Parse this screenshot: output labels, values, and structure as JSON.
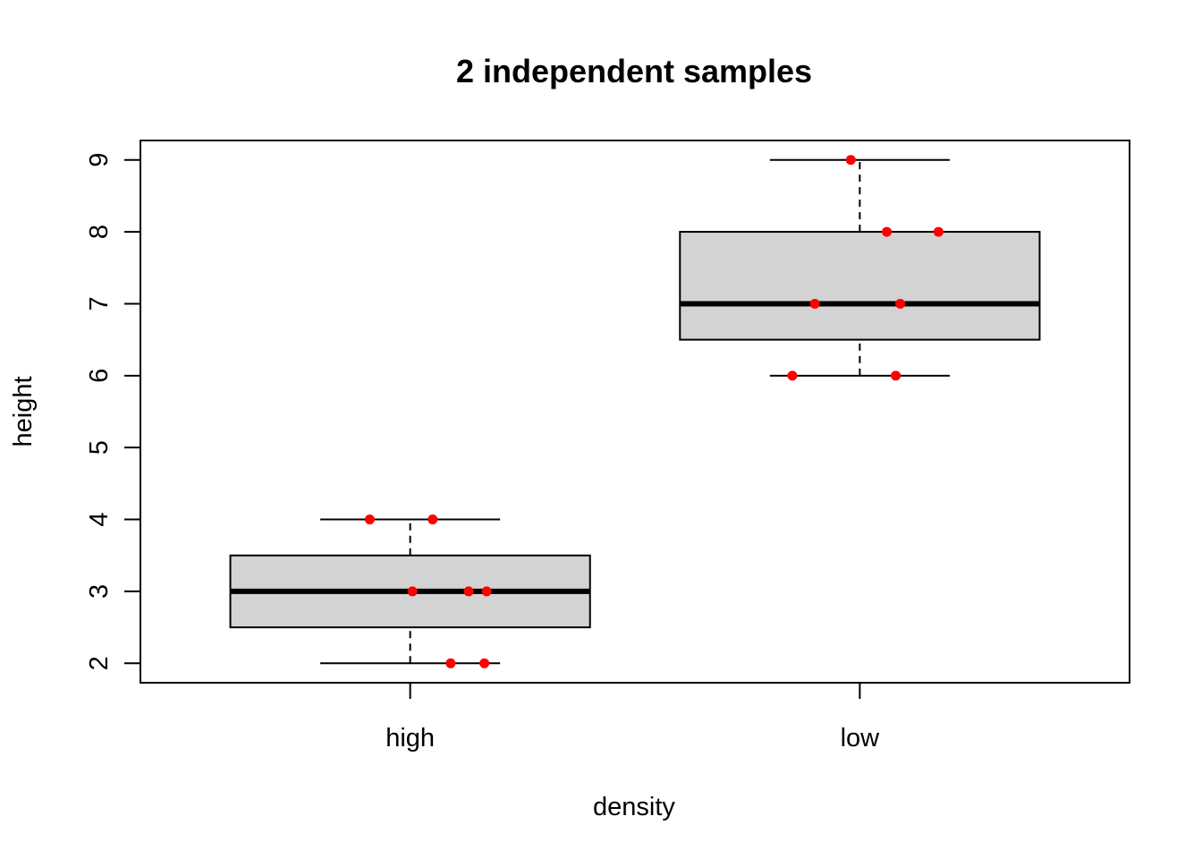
{
  "chart_data": {
    "type": "boxplot",
    "title": "2 independent samples",
    "xlabel": "density",
    "ylabel": "height",
    "ylim": [
      1.73,
      9.27
    ],
    "yticks": [
      "2",
      "3",
      "4",
      "5",
      "6",
      "7",
      "8",
      "9"
    ],
    "categories": [
      "high",
      "low"
    ],
    "boxes": [
      {
        "category": "high",
        "whisker_low": 2,
        "q1": 2.5,
        "median": 3,
        "q3": 3.5,
        "whisker_high": 4
      },
      {
        "category": "low",
        "whisker_low": 6,
        "q1": 6.5,
        "median": 7,
        "q3": 8,
        "whisker_high": 9
      }
    ],
    "points": [
      {
        "category": "high",
        "jitter": -0.09,
        "y": 4
      },
      {
        "category": "high",
        "jitter": 0.05,
        "y": 4
      },
      {
        "category": "high",
        "jitter": 0.005,
        "y": 3
      },
      {
        "category": "high",
        "jitter": 0.13,
        "y": 3
      },
      {
        "category": "high",
        "jitter": 0.17,
        "y": 3
      },
      {
        "category": "high",
        "jitter": 0.09,
        "y": 2
      },
      {
        "category": "high",
        "jitter": 0.165,
        "y": 2
      },
      {
        "category": "low",
        "jitter": -0.02,
        "y": 9
      },
      {
        "category": "low",
        "jitter": 0.06,
        "y": 8
      },
      {
        "category": "low",
        "jitter": 0.175,
        "y": 8
      },
      {
        "category": "low",
        "jitter": -0.1,
        "y": 7
      },
      {
        "category": "low",
        "jitter": 0.09,
        "y": 7
      },
      {
        "category": "low",
        "jitter": -0.15,
        "y": 6
      },
      {
        "category": "low",
        "jitter": 0.08,
        "y": 6
      }
    ],
    "colors": {
      "box_fill": "#d3d3d3",
      "point": "#ff0000",
      "line": "#000000"
    },
    "grid": false,
    "legend": "none"
  }
}
